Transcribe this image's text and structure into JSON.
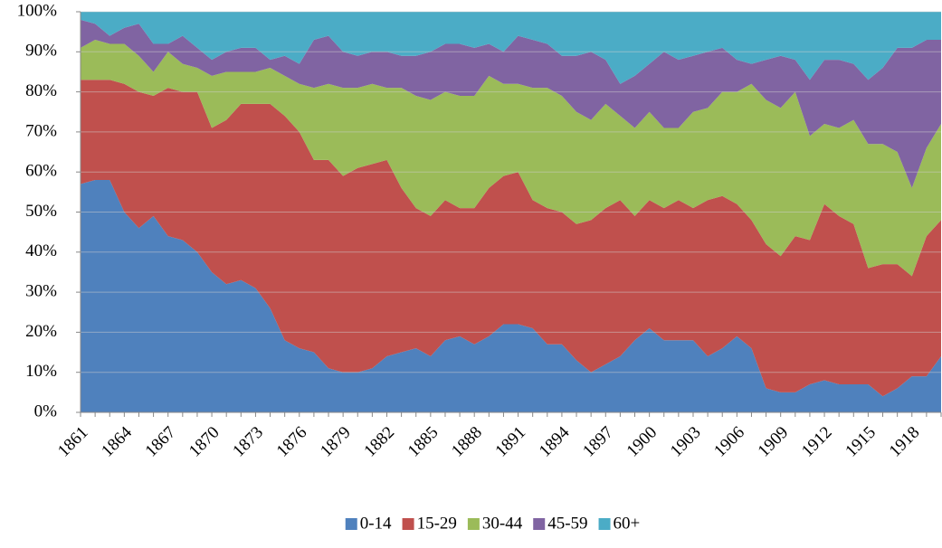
{
  "chart_data": {
    "type": "stacked_area_100",
    "categories": [
      "1861",
      null,
      null,
      "1864",
      null,
      null,
      "1867",
      null,
      null,
      "1870",
      null,
      null,
      "1873",
      null,
      null,
      "1876",
      null,
      null,
      "1879",
      null,
      null,
      "1882",
      null,
      null,
      "1885",
      null,
      null,
      "1888",
      null,
      null,
      "1891",
      null,
      null,
      "1894",
      null,
      null,
      "1897",
      null,
      null,
      "1900",
      null,
      null,
      "1903",
      null,
      null,
      "1906",
      null,
      null,
      "1909",
      null,
      null,
      "1912",
      null,
      null,
      "1915",
      null,
      null,
      "1918",
      null,
      null
    ],
    "series": [
      {
        "name": "0-14",
        "color": "#4f81bd",
        "values": [
          57,
          58,
          58,
          50,
          46,
          49,
          44,
          43,
          40,
          35,
          32,
          33,
          31,
          26,
          18,
          16,
          15,
          11,
          10,
          10,
          11,
          14,
          15,
          16,
          14,
          18,
          19,
          17,
          19,
          22,
          22,
          21,
          17,
          17,
          13,
          10,
          12,
          14,
          18,
          21,
          18,
          18,
          18,
          14,
          16,
          19,
          16,
          6,
          5,
          5,
          7,
          8,
          7,
          7,
          7,
          4,
          6,
          9,
          9,
          14
        ]
      },
      {
        "name": "15-29",
        "color": "#c0504d",
        "values": [
          26,
          25,
          25,
          32,
          34,
          30,
          37,
          37,
          40,
          36,
          41,
          44,
          46,
          51,
          56,
          54,
          48,
          52,
          49,
          51,
          51,
          49,
          41,
          35,
          35,
          35,
          32,
          34,
          37,
          37,
          38,
          32,
          34,
          33,
          34,
          38,
          39,
          39,
          31,
          32,
          33,
          35,
          33,
          39,
          38,
          33,
          32,
          36,
          34,
          39,
          36,
          44,
          42,
          40,
          29,
          33,
          31,
          25,
          35,
          34
        ]
      },
      {
        "name": "30-44",
        "color": "#9bbb59",
        "values": [
          8,
          10,
          9,
          10,
          9,
          6,
          9,
          7,
          6,
          13,
          12,
          8,
          8,
          9,
          10,
          12,
          18,
          19,
          22,
          20,
          20,
          18,
          25,
          28,
          29,
          27,
          28,
          28,
          28,
          23,
          22,
          28,
          30,
          29,
          28,
          25,
          26,
          21,
          22,
          22,
          20,
          18,
          24,
          23,
          26,
          28,
          34,
          36,
          37,
          36,
          26,
          20,
          22,
          26,
          31,
          30,
          28,
          22,
          22,
          24
        ]
      },
      {
        "name": "45-59",
        "color": "#8064a2",
        "values": [
          7,
          4,
          2,
          4,
          8,
          7,
          2,
          7,
          5,
          4,
          5,
          6,
          6,
          2,
          5,
          5,
          12,
          12,
          9,
          8,
          8,
          9,
          8,
          10,
          12,
          12,
          13,
          12,
          8,
          8,
          12,
          12,
          11,
          10,
          14,
          17,
          11,
          8,
          13,
          12,
          19,
          17,
          14,
          14,
          11,
          8,
          5,
          10,
          13,
          8,
          14,
          16,
          17,
          14,
          16,
          19,
          26,
          35,
          27,
          21
        ]
      },
      {
        "name": "60+",
        "color": "#4bacc6",
        "values": [
          2,
          3,
          6,
          4,
          3,
          8,
          8,
          6,
          9,
          12,
          10,
          9,
          9,
          12,
          11,
          13,
          7,
          6,
          10,
          11,
          10,
          10,
          11,
          11,
          10,
          8,
          8,
          9,
          8,
          10,
          6,
          7,
          8,
          11,
          11,
          10,
          12,
          18,
          16,
          13,
          10,
          12,
          11,
          10,
          9,
          12,
          13,
          12,
          11,
          12,
          17,
          12,
          12,
          13,
          17,
          14,
          9,
          9,
          7,
          7
        ]
      }
    ],
    "ylim": [
      0,
      100
    ],
    "yticks": [
      {
        "value": 0,
        "label": "0%"
      },
      {
        "value": 10,
        "label": "10%"
      },
      {
        "value": 20,
        "label": "20%"
      },
      {
        "value": 30,
        "label": "30%"
      },
      {
        "value": 40,
        "label": "40%"
      },
      {
        "value": 50,
        "label": "50%"
      },
      {
        "value": 60,
        "label": "60%"
      },
      {
        "value": 70,
        "label": "70%"
      },
      {
        "value": 80,
        "label": "80%"
      },
      {
        "value": 90,
        "label": "90%"
      },
      {
        "value": 100,
        "label": "100%"
      }
    ],
    "grid": true,
    "legend": "bottom"
  }
}
